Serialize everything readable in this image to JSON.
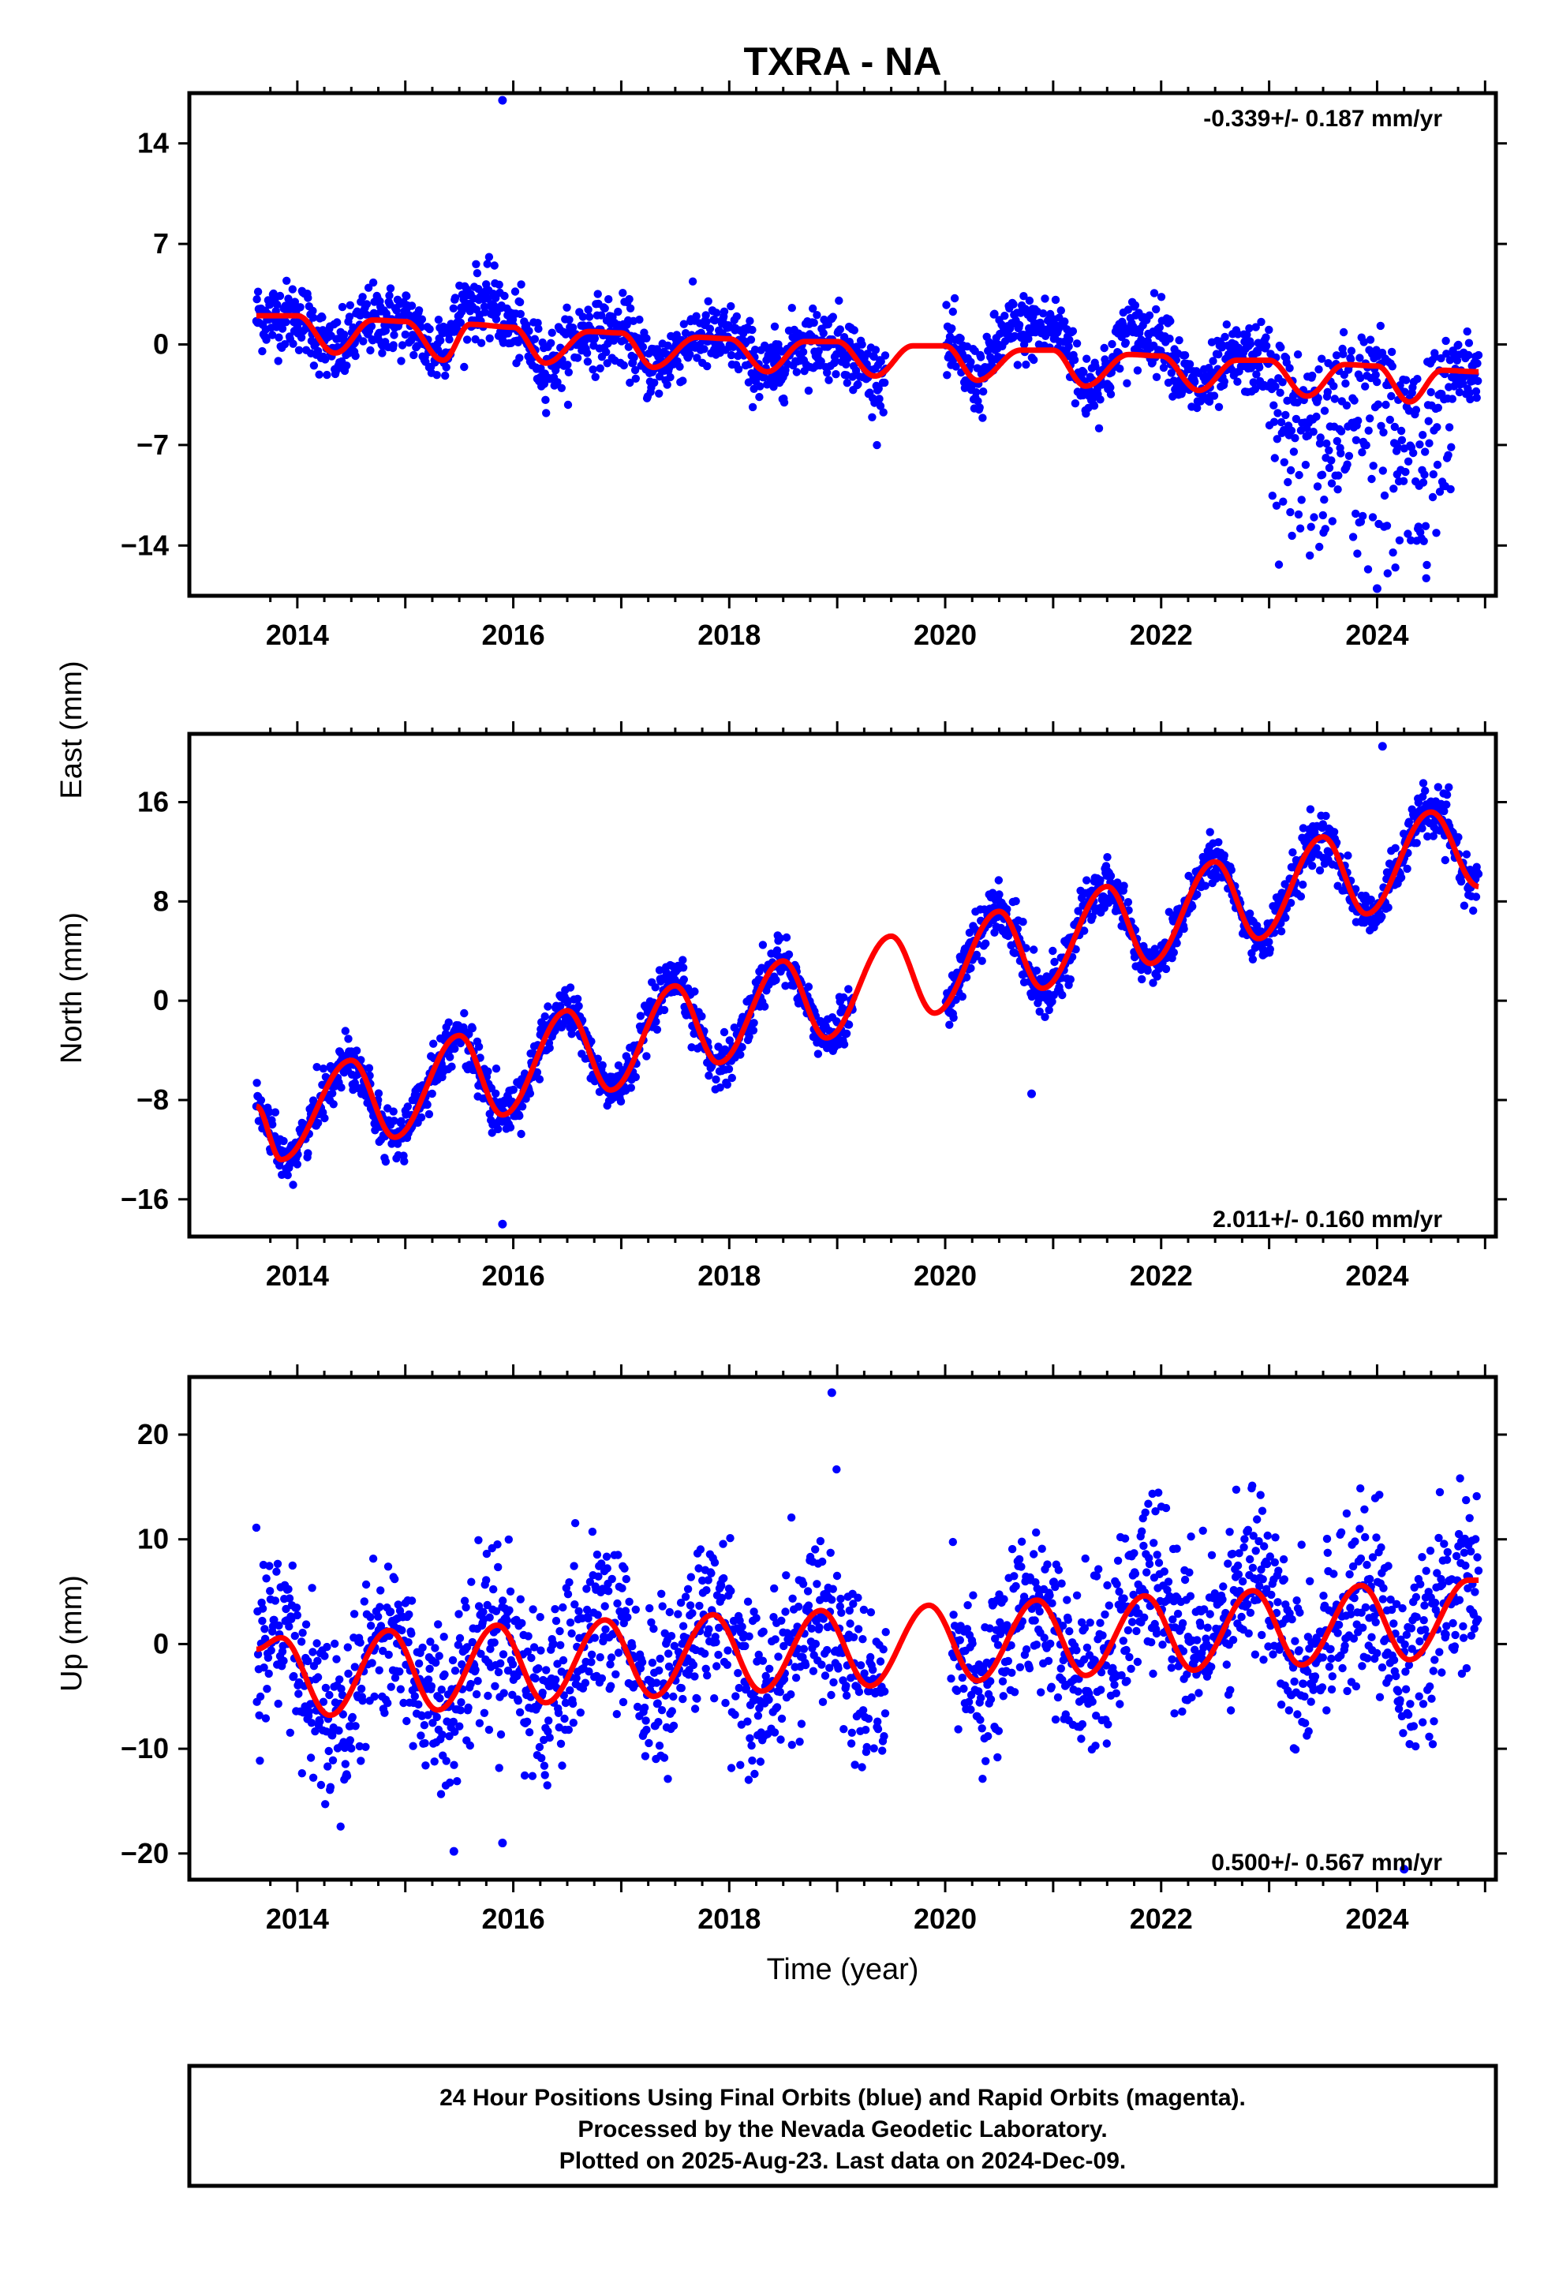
{
  "title": "TXRA - NA",
  "xlabel": "Time (year)",
  "footer": {
    "line1": "24 Hour Positions Using Final Orbits (blue) and Rapid Orbits (magenta).",
    "line2": "Processed by the Nevada Geodetic Laboratory.",
    "line3": "Plotted on 2025-Aug-23. Last data on 2024-Dec-09."
  },
  "colors": {
    "points": "#0000ff",
    "fit": "#ff0000",
    "axis": "#000000"
  },
  "chart_data": [
    {
      "type": "scatter",
      "name": "East",
      "ylabel": "East (mm)",
      "rate_text": "-0.339+/- 0.187 mm/yr",
      "xlim": [
        2013.0,
        2025.1
      ],
      "ylim": [
        -17.5,
        17.5
      ],
      "yticks": [
        14,
        7,
        0,
        -7,
        -14
      ],
      "ytick_labels": [
        "14",
        "7",
        "0",
        "−7",
        "−14"
      ],
      "xticks": [
        2014,
        2016,
        2018,
        2020,
        2022,
        2024
      ],
      "xtick_labels": [
        "2014",
        "2016",
        "2018",
        "2020",
        "2022",
        "2024"
      ],
      "data_start": 2013.62,
      "data_end": 2024.94,
      "gap": [
        2019.45,
        2020.0
      ],
      "fit": {
        "x": [
          2013.62,
          2014.0,
          2014.35,
          2014.7,
          2015.0,
          2015.35,
          2015.6,
          2016.0,
          2016.3,
          2016.7,
          2017.0,
          2017.3,
          2017.7,
          2018.0,
          2018.35,
          2018.7,
          2019.0,
          2019.35,
          2019.7,
          2020.0,
          2020.3,
          2020.7,
          2021.0,
          2021.3,
          2021.7,
          2022.0,
          2022.35,
          2022.7,
          2023.0,
          2023.35,
          2023.7,
          2024.0,
          2024.3,
          2024.6,
          2024.94
        ],
        "y": [
          2.0,
          2.0,
          -0.6,
          1.7,
          1.6,
          -1.1,
          1.4,
          1.2,
          -1.3,
          0.9,
          0.8,
          -1.6,
          0.5,
          0.4,
          -1.9,
          0.2,
          0.2,
          -2.2,
          -0.1,
          -0.1,
          -2.5,
          -0.4,
          -0.4,
          -2.9,
          -0.7,
          -0.8,
          -3.2,
          -1.1,
          -1.1,
          -3.6,
          -1.4,
          -1.5,
          -4.0,
          -1.8,
          -1.9
        ]
      },
      "outliers": [
        [
          2015.9,
          17.0
        ],
        [
          2024.0,
          -17.0
        ]
      ]
    },
    {
      "type": "scatter",
      "name": "North",
      "ylabel": "North (mm)",
      "rate_text": "2.011+/- 0.160 mm/yr",
      "xlim": [
        2013.0,
        2025.1
      ],
      "ylim": [
        -19,
        21.5
      ],
      "yticks": [
        16,
        8,
        0,
        -8,
        -16
      ],
      "ytick_labels": [
        "16",
        "8",
        "0",
        "−8",
        "−16"
      ],
      "xticks": [
        2014,
        2016,
        2018,
        2020,
        2022,
        2024
      ],
      "xtick_labels": [
        "2014",
        "2016",
        "2018",
        "2020",
        "2022",
        "2024"
      ],
      "data_start": 2013.62,
      "data_end": 2024.94,
      "gap": [
        2019.15,
        2020.0
      ],
      "fit": {
        "x": [
          2013.62,
          2013.85,
          2014.5,
          2014.9,
          2015.5,
          2015.9,
          2016.5,
          2016.9,
          2017.5,
          2017.9,
          2018.5,
          2018.9,
          2019.5,
          2019.9,
          2020.5,
          2020.9,
          2021.5,
          2021.9,
          2022.5,
          2022.9,
          2023.5,
          2023.9,
          2024.5,
          2024.94
        ],
        "y": [
          -8.5,
          -12.8,
          -4.8,
          -11.0,
          -2.8,
          -9.2,
          -0.8,
          -7.2,
          1.2,
          -5.0,
          3.2,
          -3.0,
          5.2,
          -1.0,
          7.2,
          1.0,
          9.2,
          3.0,
          11.2,
          5.0,
          13.2,
          7.0,
          15.2,
          9.2
        ]
      },
      "outliers": [
        [
          2015.9,
          -18.0
        ],
        [
          2020.8,
          -7.5
        ],
        [
          2024.05,
          20.5
        ]
      ]
    },
    {
      "type": "scatter",
      "name": "Up",
      "ylabel": "Up (mm)",
      "rate_text": "0.500+/- 0.567 mm/yr",
      "xlim": [
        2013.0,
        2025.1
      ],
      "ylim": [
        -22.5,
        25.5
      ],
      "yticks": [
        20,
        10,
        0,
        -10,
        -20
      ],
      "ytick_labels": [
        "20",
        "10",
        "0",
        "−10",
        "−20"
      ],
      "xticks": [
        2014,
        2016,
        2018,
        2020,
        2022,
        2024
      ],
      "xtick_labels": [
        "2014",
        "2016",
        "2018",
        "2020",
        "2022",
        "2024"
      ],
      "data_start": 2013.62,
      "data_end": 2024.94,
      "gap": [
        2019.45,
        2020.05
      ],
      "fit": {
        "x": [
          2013.62,
          2013.85,
          2014.3,
          2014.85,
          2015.3,
          2015.85,
          2016.3,
          2016.85,
          2017.3,
          2017.85,
          2018.3,
          2018.85,
          2019.3,
          2019.85,
          2020.3,
          2020.85,
          2021.3,
          2021.85,
          2022.3,
          2022.85,
          2023.3,
          2023.85,
          2024.3,
          2024.85
        ],
        "y": [
          -0.5,
          0.6,
          -6.8,
          1.3,
          -6.3,
          1.8,
          -5.6,
          2.3,
          -5.0,
          2.8,
          -4.5,
          3.2,
          -4.0,
          3.7,
          -3.5,
          4.2,
          -3.0,
          4.6,
          -2.5,
          5.1,
          -2.0,
          5.6,
          -1.5,
          6.1
        ]
      },
      "outliers": [
        [
          2018.95,
          24.0
        ],
        [
          2015.9,
          -19.0
        ],
        [
          2015.45,
          -19.8
        ],
        [
          2024.25,
          -21.5
        ]
      ]
    }
  ]
}
